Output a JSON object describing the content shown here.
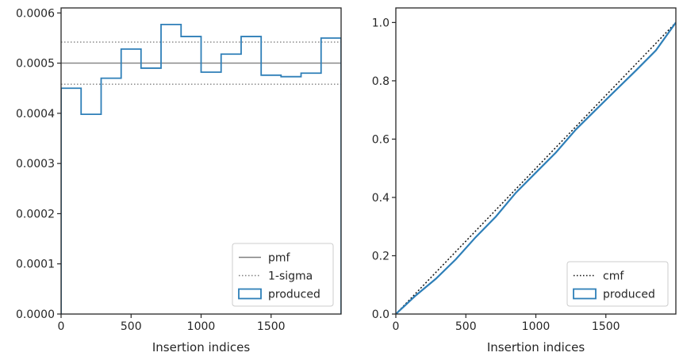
{
  "chart_data": [
    {
      "type": "histogram-step",
      "xlabel": "Insertion indices",
      "ylabel": "",
      "xlim": [
        0,
        2000
      ],
      "ylim": [
        0,
        0.00061
      ],
      "xticks": [
        0,
        500,
        1000,
        1500
      ],
      "xtick_labels": [
        "0",
        "500",
        "1000",
        "1500"
      ],
      "yticks": [
        0,
        0.0001,
        0.0002,
        0.0003,
        0.0004,
        0.0005,
        0.0006
      ],
      "ytick_labels": [
        "0.0000",
        "0.0001",
        "0.0002",
        "0.0003",
        "0.0004",
        "0.0005",
        "0.0006"
      ],
      "legend_position": "lower-right",
      "grid": false,
      "reference_lines": [
        {
          "name": "pmf",
          "y": 0.0005,
          "style": "solid",
          "color": "#808080"
        },
        {
          "name": "1-sigma",
          "y": [
            0.000458,
            0.000542
          ],
          "style": "dotted",
          "color": "#808080"
        }
      ],
      "series": [
        {
          "name": "produced",
          "color": "#2e7fb8",
          "bin_edges": [
            0,
            143,
            286,
            429,
            571,
            714,
            857,
            1000,
            1143,
            1286,
            1429,
            1571,
            1714,
            1857,
            2000
          ],
          "values": [
            0.00045,
            0.000398,
            0.00047,
            0.000528,
            0.00049,
            0.000577,
            0.000553,
            0.000482,
            0.000518,
            0.000553,
            0.000476,
            0.000473,
            0.00048,
            0.00055
          ]
        }
      ]
    },
    {
      "type": "line",
      "xlabel": "Insertion indices",
      "ylabel": "",
      "xlim": [
        0,
        2000
      ],
      "ylim": [
        0,
        1.05
      ],
      "xticks": [
        0,
        500,
        1000,
        1500
      ],
      "xtick_labels": [
        "0",
        "500",
        "1000",
        "1500"
      ],
      "yticks": [
        0,
        0.2,
        0.4,
        0.6,
        0.8,
        1.0
      ],
      "ytick_labels": [
        "0.0",
        "0.2",
        "0.4",
        "0.6",
        "0.8",
        "1.0"
      ],
      "legend_position": "lower-right",
      "grid": false,
      "series": [
        {
          "name": "cmf",
          "style": "dotted",
          "color": "#111111",
          "x": [
            0,
            2000
          ],
          "y": [
            0,
            1
          ]
        },
        {
          "name": "produced",
          "style": "solid",
          "color": "#2e7fb8",
          "x": [
            0,
            143,
            286,
            429,
            571,
            714,
            857,
            1000,
            1143,
            1286,
            1429,
            1571,
            1714,
            1857,
            2000
          ],
          "y": [
            0,
            0.064,
            0.121,
            0.188,
            0.264,
            0.334,
            0.416,
            0.485,
            0.554,
            0.633,
            0.701,
            0.768,
            0.835,
            0.904,
            1.0
          ]
        }
      ]
    }
  ]
}
